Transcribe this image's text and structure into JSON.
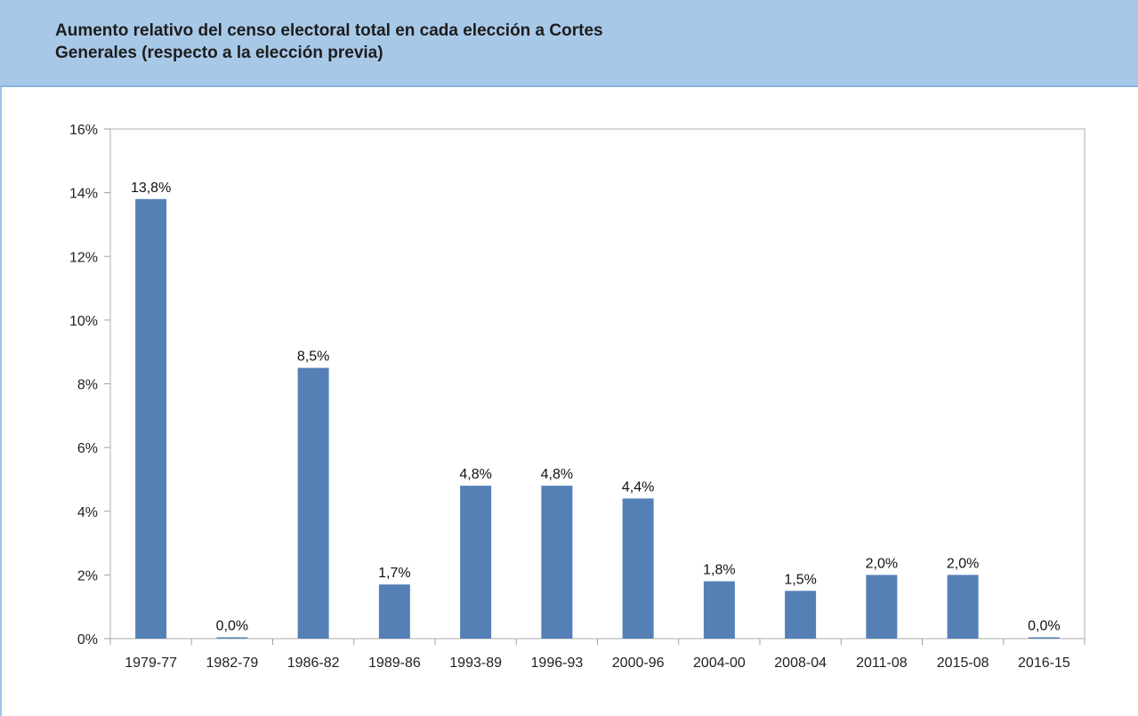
{
  "title_line1": "Aumento relativo del censo electoral total en cada elección a Cortes",
  "title_line2": "Generales (respecto a la elección previa)",
  "chart_data": {
    "type": "bar",
    "title": "Aumento relativo del censo electoral total en cada elección a Cortes Generales (respecto a la elección previa)",
    "categories": [
      "1979-77",
      "1982-79",
      "1986-82",
      "1989-86",
      "1993-89",
      "1996-93",
      "2000-96",
      "2004-00",
      "2008-04",
      "2011-08",
      "2015-08",
      "2016-15"
    ],
    "values": [
      13.8,
      0.0,
      8.5,
      1.7,
      4.8,
      4.8,
      4.4,
      1.8,
      1.5,
      2.0,
      2.0,
      0.0
    ],
    "data_labels": [
      "13,8%",
      "0,0%",
      "8,5%",
      "1,7%",
      "4,8%",
      "4,8%",
      "4,4%",
      "1,8%",
      "1,5%",
      "2,0%",
      "2,0%",
      "0,0%"
    ],
    "y_ticks": [
      "0%",
      "2%",
      "4%",
      "6%",
      "8%",
      "10%",
      "12%",
      "14%",
      "16%"
    ],
    "ylim": [
      0,
      16
    ],
    "xlabel": "",
    "ylabel": "",
    "grid": false,
    "bar_color": "#5580b6"
  }
}
